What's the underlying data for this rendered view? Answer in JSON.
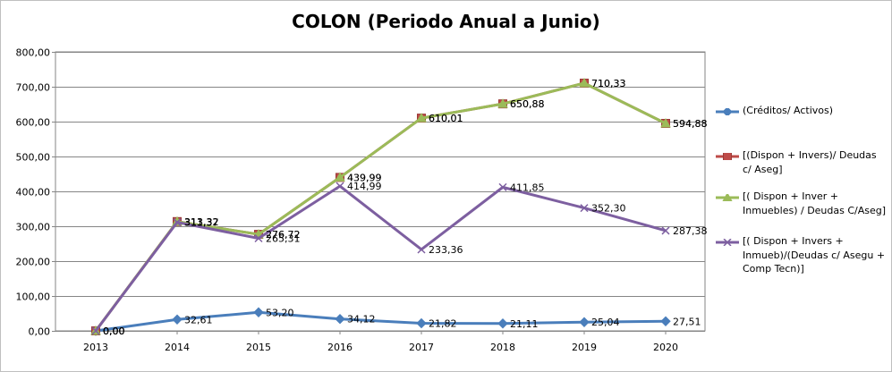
{
  "chart_data": {
    "type": "line",
    "title": "COLON (Periodo Anual a Junio)",
    "xlabel": "",
    "ylabel": "",
    "categories": [
      "2013",
      "2014",
      "2015",
      "2016",
      "2017",
      "2018",
      "2019",
      "2020"
    ],
    "ylim": [
      0,
      800
    ],
    "yticks": [
      "0,00",
      "100,00",
      "200,00",
      "300,00",
      "400,00",
      "500,00",
      "600,00",
      "700,00",
      "800,00"
    ],
    "grid": true,
    "legend_position": "right",
    "series": [
      {
        "name": "(Créditos/ Activos)",
        "color": "#4a7ebb",
        "marker": "diamond",
        "values": [
          0.0,
          32.61,
          53.2,
          34.12,
          21.82,
          21.11,
          25.04,
          27.51
        ],
        "labels": [
          "0,00",
          "32,61",
          "53,20",
          "34,12",
          "21,82",
          "21,11",
          "25,04",
          "27,51"
        ]
      },
      {
        "name": "[(Dispon + Invers)/ Deudas c/ Aseg]",
        "color": "#be4b48",
        "marker": "square",
        "values": [
          0.0,
          313.32,
          276.72,
          439.99,
          610.01,
          650.88,
          710.33,
          594.88
        ],
        "labels": [
          "0,00",
          "313,32",
          "276,72",
          "439,99",
          "610,01",
          "650,88",
          "710,33",
          "594,88"
        ]
      },
      {
        "name": "[( Dispon + Inver + Inmuebles) / Deudas C/Aseg]",
        "color": "#9bbb59",
        "marker": "triangle",
        "values": [
          0.0,
          313.32,
          276.72,
          439.99,
          610.01,
          650.88,
          710.33,
          594.88
        ],
        "labels": [
          "0,00",
          "313,32",
          "276,72",
          "439,99",
          "610,01",
          "650,88",
          "710,33",
          "594,88"
        ]
      },
      {
        "name": "[( Dispon + Invers + Inmueb)/(Deudas c/ Asegu + Comp Tecn)]",
        "color": "#7d5fa0",
        "marker": "x",
        "values": [
          0.0,
          311.37,
          265.31,
          414.99,
          233.36,
          411.85,
          352.3,
          287.38
        ],
        "labels": [
          "0,00",
          "311,37",
          "265,31",
          "414,99",
          "233,36",
          "411,85",
          "352,30",
          "287,38"
        ]
      }
    ]
  }
}
